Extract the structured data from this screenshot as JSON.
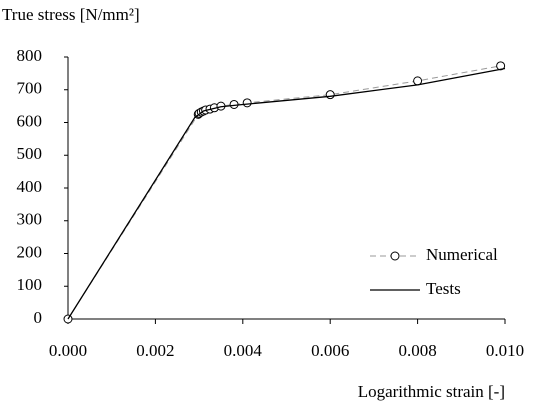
{
  "chart_data": {
    "type": "line",
    "ylabel": "True stress [N/mm²]",
    "xlabel": "Logarithmic strain [-]",
    "xlim": [
      0,
      0.01
    ],
    "xticks": [
      {
        "value": 0,
        "label": "0.000"
      },
      {
        "value": 0.002,
        "label": "0.002"
      },
      {
        "value": 0.004,
        "label": "0.004"
      },
      {
        "value": 0.006,
        "label": "0.006"
      },
      {
        "value": 0.008,
        "label": "0.008"
      },
      {
        "value": 0.01,
        "label": "0.010"
      }
    ],
    "ylim": [
      0,
      800
    ],
    "yticks": [
      0,
      100,
      200,
      300,
      400,
      500,
      600,
      700,
      800
    ],
    "legend": "lower right",
    "series": [
      {
        "name": "Numerical",
        "color": "#999999",
        "dashed": true,
        "marker": "circle",
        "x": [
          0,
          0.00298,
          0.003,
          0.00305,
          0.0031,
          0.00315,
          0.00325,
          0.00335,
          0.0035,
          0.0038,
          0.0041,
          0.006,
          0.008,
          0.0099
        ],
        "values": [
          0,
          625,
          628,
          632,
          635,
          638,
          641,
          645,
          650,
          655,
          660,
          685,
          727,
          773
        ]
      },
      {
        "name": "Tests",
        "color": "#000000",
        "dashed": false,
        "marker": "none",
        "x": [
          0,
          0.0029,
          0.0031,
          0.0035,
          0.004,
          0.006,
          0.008,
          0.01
        ],
        "values": [
          0,
          615,
          635,
          648,
          655,
          680,
          715,
          765
        ]
      }
    ]
  }
}
